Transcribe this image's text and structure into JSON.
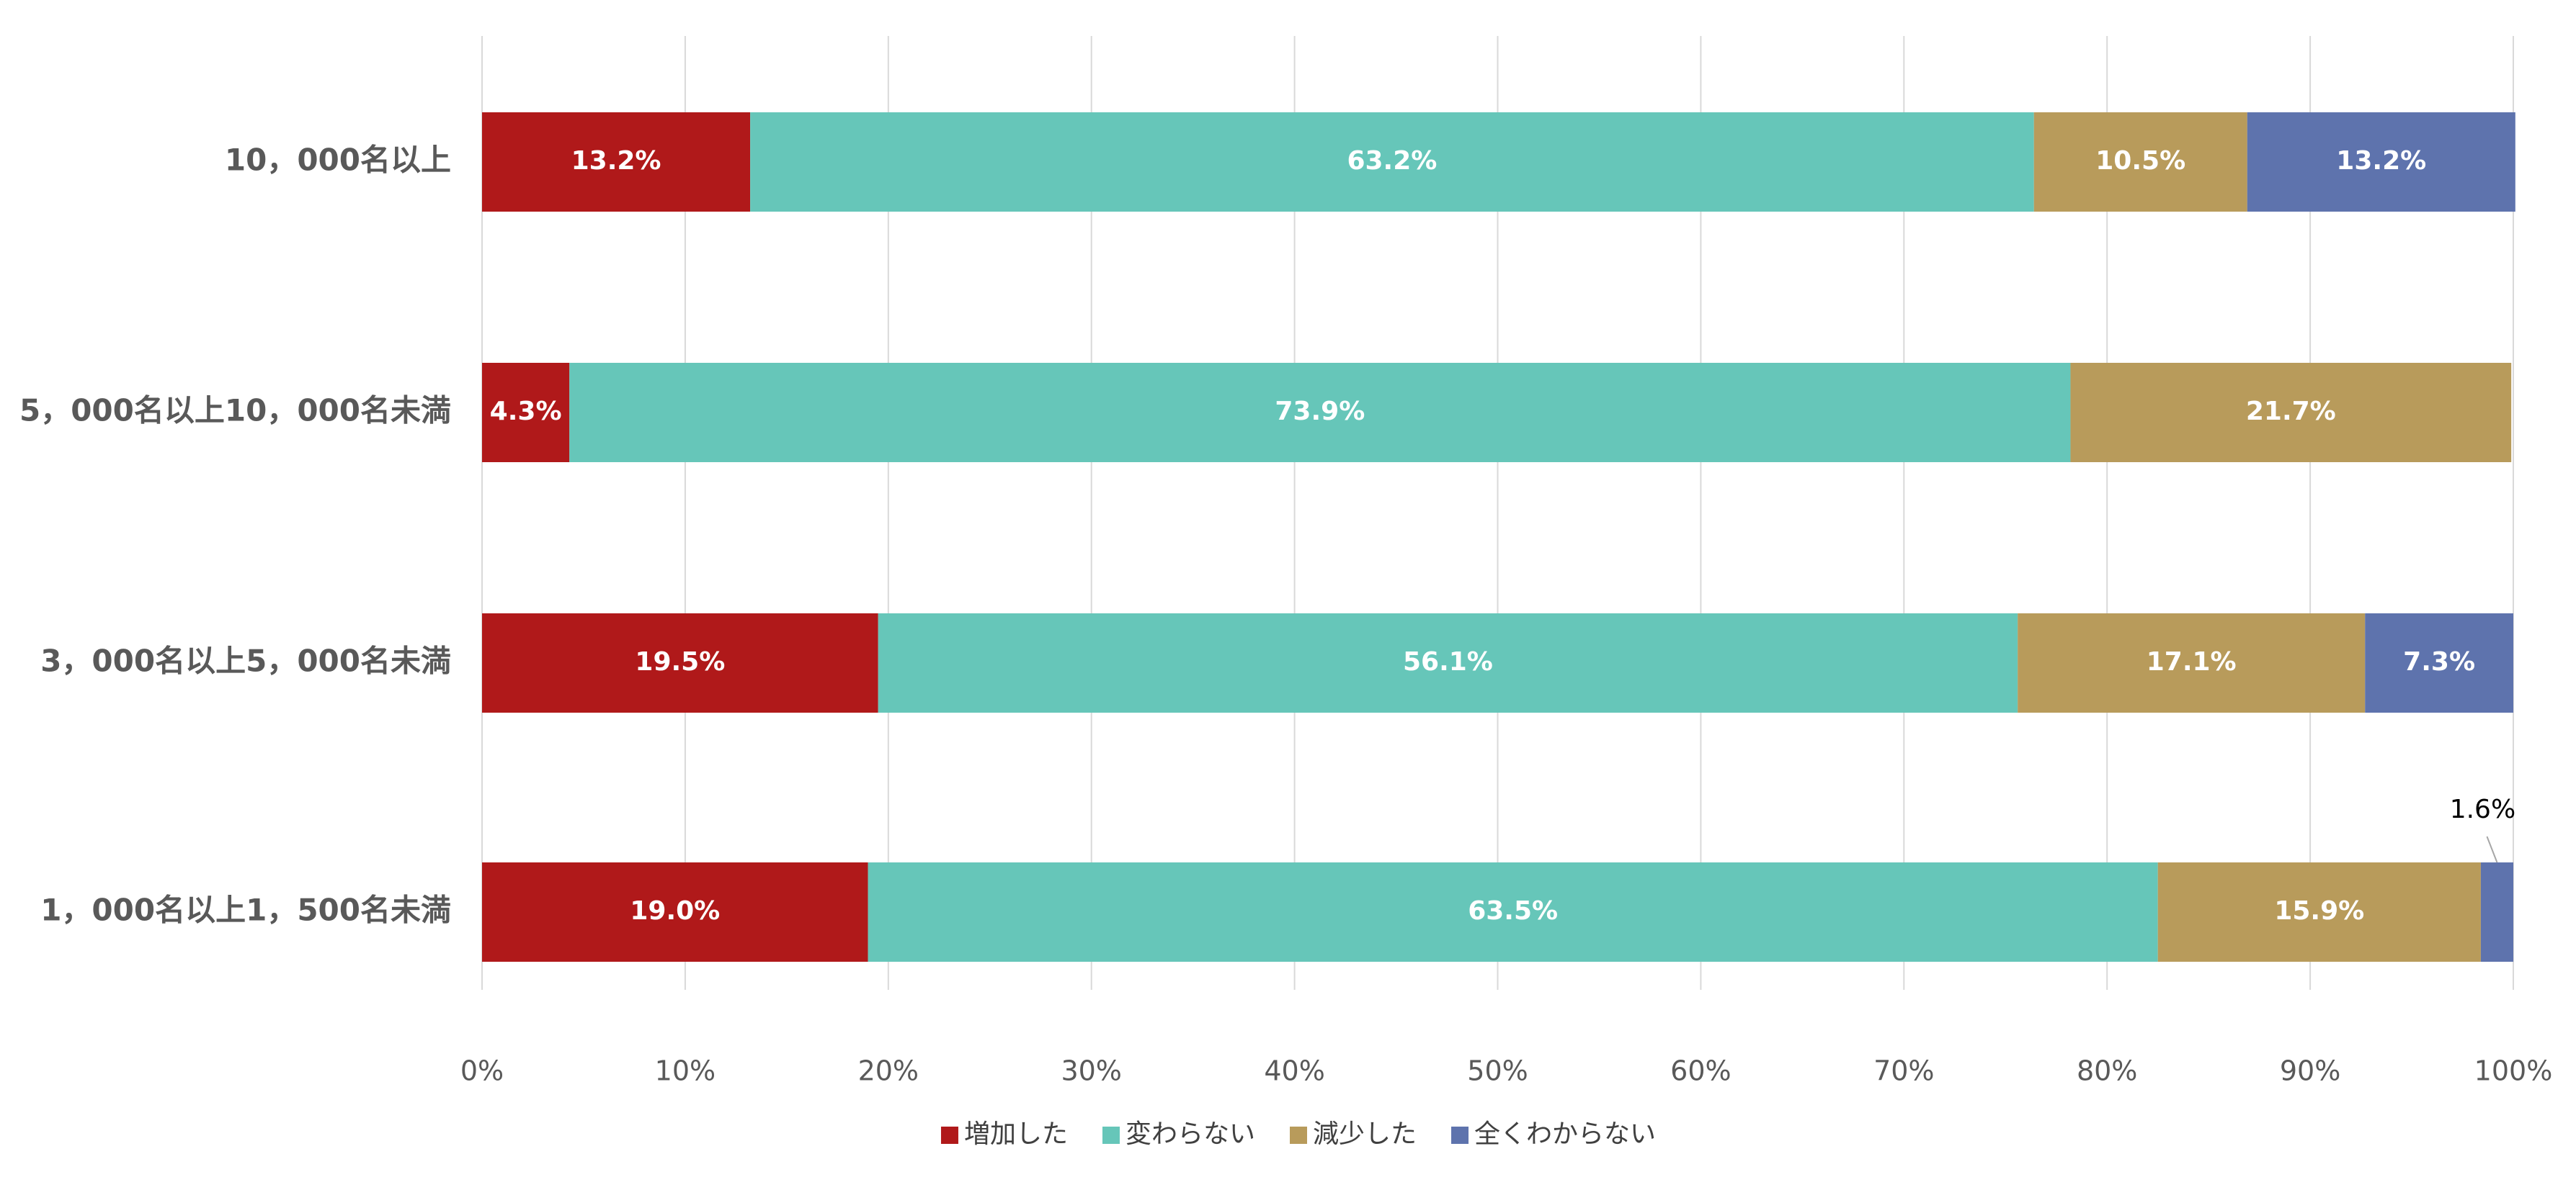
{
  "chart_data": {
    "type": "stacked-bar-horizontal",
    "categories": [
      "10，000名以上",
      "5，000名以上10，000名未満",
      "3，000名以上5，000名未満",
      "1，000名以上1，500名未満"
    ],
    "series": [
      {
        "name": "増加した",
        "color": "#b0191a",
        "values": [
          13.2,
          4.3,
          19.5,
          19.0
        ],
        "value_labels": [
          "13.2%",
          "4.3%",
          "19.5%",
          "19.0%"
        ]
      },
      {
        "name": "変わらない",
        "color": "#66c6b9",
        "values": [
          63.2,
          73.9,
          56.1,
          63.5
        ],
        "value_labels": [
          "63.2%",
          "73.9%",
          "56.1%",
          "63.5%"
        ]
      },
      {
        "name": "減少した",
        "color": "#b89b5b",
        "values": [
          10.5,
          21.7,
          17.1,
          15.9
        ],
        "value_labels": [
          "10.5%",
          "21.7%",
          "17.1%",
          "15.9%"
        ]
      },
      {
        "name": "全くわからない",
        "color": "#5e73ad",
        "values": [
          13.2,
          null,
          7.3,
          1.6
        ],
        "value_labels": [
          "13.2%",
          null,
          "7.3%",
          "1.6%"
        ]
      }
    ],
    "xlim": [
      0,
      100
    ],
    "xticks": [
      {
        "value": 0,
        "label": "0%"
      },
      {
        "value": 10,
        "label": "10%"
      },
      {
        "value": 20,
        "label": "20%"
      },
      {
        "value": 30,
        "label": "30%"
      },
      {
        "value": 40,
        "label": "40%"
      },
      {
        "value": 50,
        "label": "50%"
      },
      {
        "value": 60,
        "label": "60%"
      },
      {
        "value": 70,
        "label": "70%"
      },
      {
        "value": 80,
        "label": "80%"
      },
      {
        "value": 90,
        "label": "90%"
      },
      {
        "value": 100,
        "label": "100%"
      }
    ],
    "grid": true,
    "legend": "bottom"
  }
}
